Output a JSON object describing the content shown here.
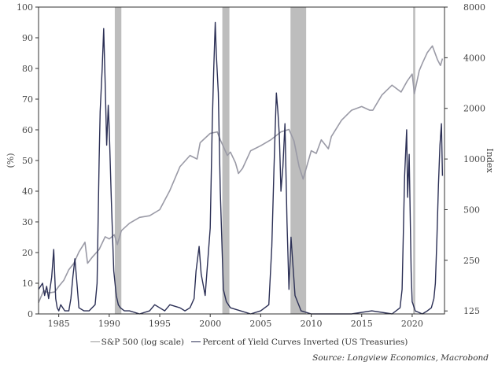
{
  "chart_data": {
    "type": "line",
    "title": "",
    "xlabel": "",
    "ylabel_left": "(%)",
    "ylabel_right": "Index",
    "x_ticks": [
      1985,
      1990,
      1995,
      2000,
      2005,
      2010,
      2015,
      2020
    ],
    "x_range": [
      1983.0,
      2023.2
    ],
    "y_left_range": [
      0,
      100
    ],
    "y_left_ticks": [
      0,
      10,
      20,
      30,
      40,
      50,
      60,
      70,
      80,
      90,
      100
    ],
    "y_right_scale": "log",
    "y_right_range": [
      120,
      8000
    ],
    "y_right_ticks": [
      125,
      250,
      500,
      1000,
      2000,
      4000,
      8000
    ],
    "recessions": [
      [
        1990.55,
        1991.2
      ],
      [
        2001.2,
        2001.9
      ],
      [
        2007.95,
        2009.5
      ],
      [
        2020.1,
        2020.3
      ]
    ],
    "series": [
      {
        "name": "S&P 500 (log scale)",
        "axis": "right",
        "color": "#9a9aa6",
        "x": [
          1983.0,
          1983.5,
          1984.0,
          1984.6,
          1985.0,
          1985.5,
          1986.0,
          1986.5,
          1987.0,
          1987.6,
          1987.85,
          1988.3,
          1989.0,
          1989.6,
          1990.0,
          1990.5,
          1990.8,
          1991.2,
          1992.0,
          1993.0,
          1994.0,
          1995.0,
          1996.0,
          1997.0,
          1998.0,
          1998.7,
          1999.0,
          2000.0,
          2000.7,
          2001.0,
          2001.7,
          2002.0,
          2002.5,
          2002.8,
          2003.2,
          2004.0,
          2005.0,
          2006.0,
          2007.0,
          2007.8,
          2008.3,
          2008.8,
          2009.2,
          2010.0,
          2010.5,
          2011.0,
          2011.7,
          2012.0,
          2013.0,
          2014.0,
          2015.0,
          2015.8,
          2016.1,
          2017.0,
          2018.0,
          2018.9,
          2019.5,
          2020.0,
          2020.22,
          2020.7,
          2021.0,
          2021.5,
          2022.0,
          2022.5,
          2022.8,
          2023.0
        ],
        "values": [
          140,
          165,
          160,
          162,
          175,
          190,
          220,
          240,
          280,
          320,
          240,
          260,
          290,
          345,
          335,
          355,
          310,
          375,
          415,
          450,
          460,
          500,
          650,
          900,
          1050,
          1000,
          1250,
          1420,
          1450,
          1300,
          1050,
          1100,
          950,
          820,
          880,
          1120,
          1200,
          1300,
          1450,
          1500,
          1280,
          900,
          760,
          1120,
          1080,
          1300,
          1150,
          1360,
          1700,
          1950,
          2050,
          1950,
          1950,
          2400,
          2750,
          2500,
          2900,
          3200,
          2450,
          3350,
          3700,
          4300,
          4700,
          3900,
          3600,
          3950
        ]
      },
      {
        "name": "Percent of Yield Curves Inverted (US Treasuries)",
        "axis": "left",
        "color": "#2b2f55",
        "x": [
          1983.0,
          1983.4,
          1983.6,
          1983.8,
          1984.0,
          1984.3,
          1984.5,
          1984.6,
          1984.7,
          1984.85,
          1985.0,
          1985.2,
          1985.6,
          1986.0,
          1986.2,
          1986.4,
          1986.6,
          1986.8,
          1987.0,
          1987.5,
          1988.0,
          1988.6,
          1988.8,
          1989.0,
          1989.1,
          1989.3,
          1989.45,
          1989.6,
          1989.75,
          1989.9,
          1990.0,
          1990.2,
          1990.45,
          1990.7,
          1990.9,
          1991.1,
          1991.5,
          1992.0,
          1993.0,
          1994.0,
          1994.5,
          1995.0,
          1995.5,
          1996.0,
          1997.0,
          1997.5,
          1998.0,
          1998.4,
          1998.6,
          1998.9,
          1999.1,
          1999.5,
          2000.0,
          2000.2,
          2000.35,
          2000.5,
          2000.6,
          2000.8,
          2001.0,
          2001.3,
          2001.6,
          2002.0,
          2003.0,
          2004.0,
          2005.0,
          2005.8,
          2006.1,
          2006.3,
          2006.45,
          2006.55,
          2006.7,
          2006.85,
          2007.0,
          2007.2,
          2007.4,
          2007.6,
          2007.8,
          2008.0,
          2008.4,
          2009.0,
          2010.0,
          2012.0,
          2014.0,
          2016.0,
          2018.0,
          2018.8,
          2019.0,
          2019.25,
          2019.45,
          2019.55,
          2019.7,
          2019.9,
          2020.0,
          2020.3,
          2021.0,
          2021.5,
          2021.9,
          2022.15,
          2022.3,
          2022.45,
          2022.6,
          2022.75,
          2022.9,
          2023.0
        ],
        "values": [
          8,
          10,
          6,
          9,
          5,
          12,
          21,
          13,
          5,
          2,
          1,
          3,
          1,
          1,
          5,
          12,
          18,
          10,
          2,
          1,
          1,
          3,
          10,
          50,
          66,
          80,
          93,
          75,
          55,
          68,
          60,
          38,
          14,
          6,
          3,
          2,
          1,
          1,
          0,
          1,
          3,
          2,
          1,
          3,
          2,
          1,
          2,
          5,
          14,
          22,
          13,
          6,
          28,
          62,
          80,
          95,
          85,
          72,
          40,
          8,
          4,
          2,
          1,
          0,
          1,
          3,
          22,
          46,
          62,
          72,
          66,
          58,
          40,
          48,
          62,
          30,
          8,
          25,
          6,
          1,
          0,
          0,
          0,
          1,
          0,
          2,
          8,
          45,
          60,
          38,
          52,
          14,
          4,
          1,
          0,
          1,
          2,
          5,
          10,
          25,
          42,
          55,
          62,
          45
        ]
      }
    ],
    "legend": {
      "placement": "bottom",
      "entries": [
        "S&P 500 (log scale)",
        "Percent of Yield Curves Inverted (US Treasuries)"
      ]
    },
    "source": "Source: Longview Economics, Macrobond"
  }
}
